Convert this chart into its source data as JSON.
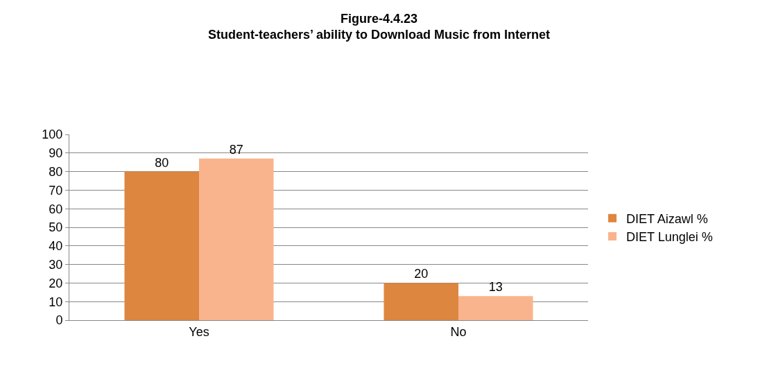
{
  "chart_data": {
    "type": "bar",
    "title": "Figure-4.4.23\nStudent-teachers’ ability to Download Music from Internet",
    "categories": [
      "Yes",
      "No"
    ],
    "series": [
      {
        "name": "DIET Aizawl %",
        "color": "#dd8640",
        "values": [
          80,
          20
        ]
      },
      {
        "name": "DIET Lunglei %",
        "color": "#f9b48e",
        "values": [
          87,
          13
        ]
      }
    ],
    "ylim": [
      0,
      100
    ],
    "yticks": [
      0,
      10,
      20,
      30,
      40,
      50,
      60,
      70,
      80,
      90,
      100
    ],
    "grid": "y",
    "legend": "right",
    "data_labels": true
  }
}
